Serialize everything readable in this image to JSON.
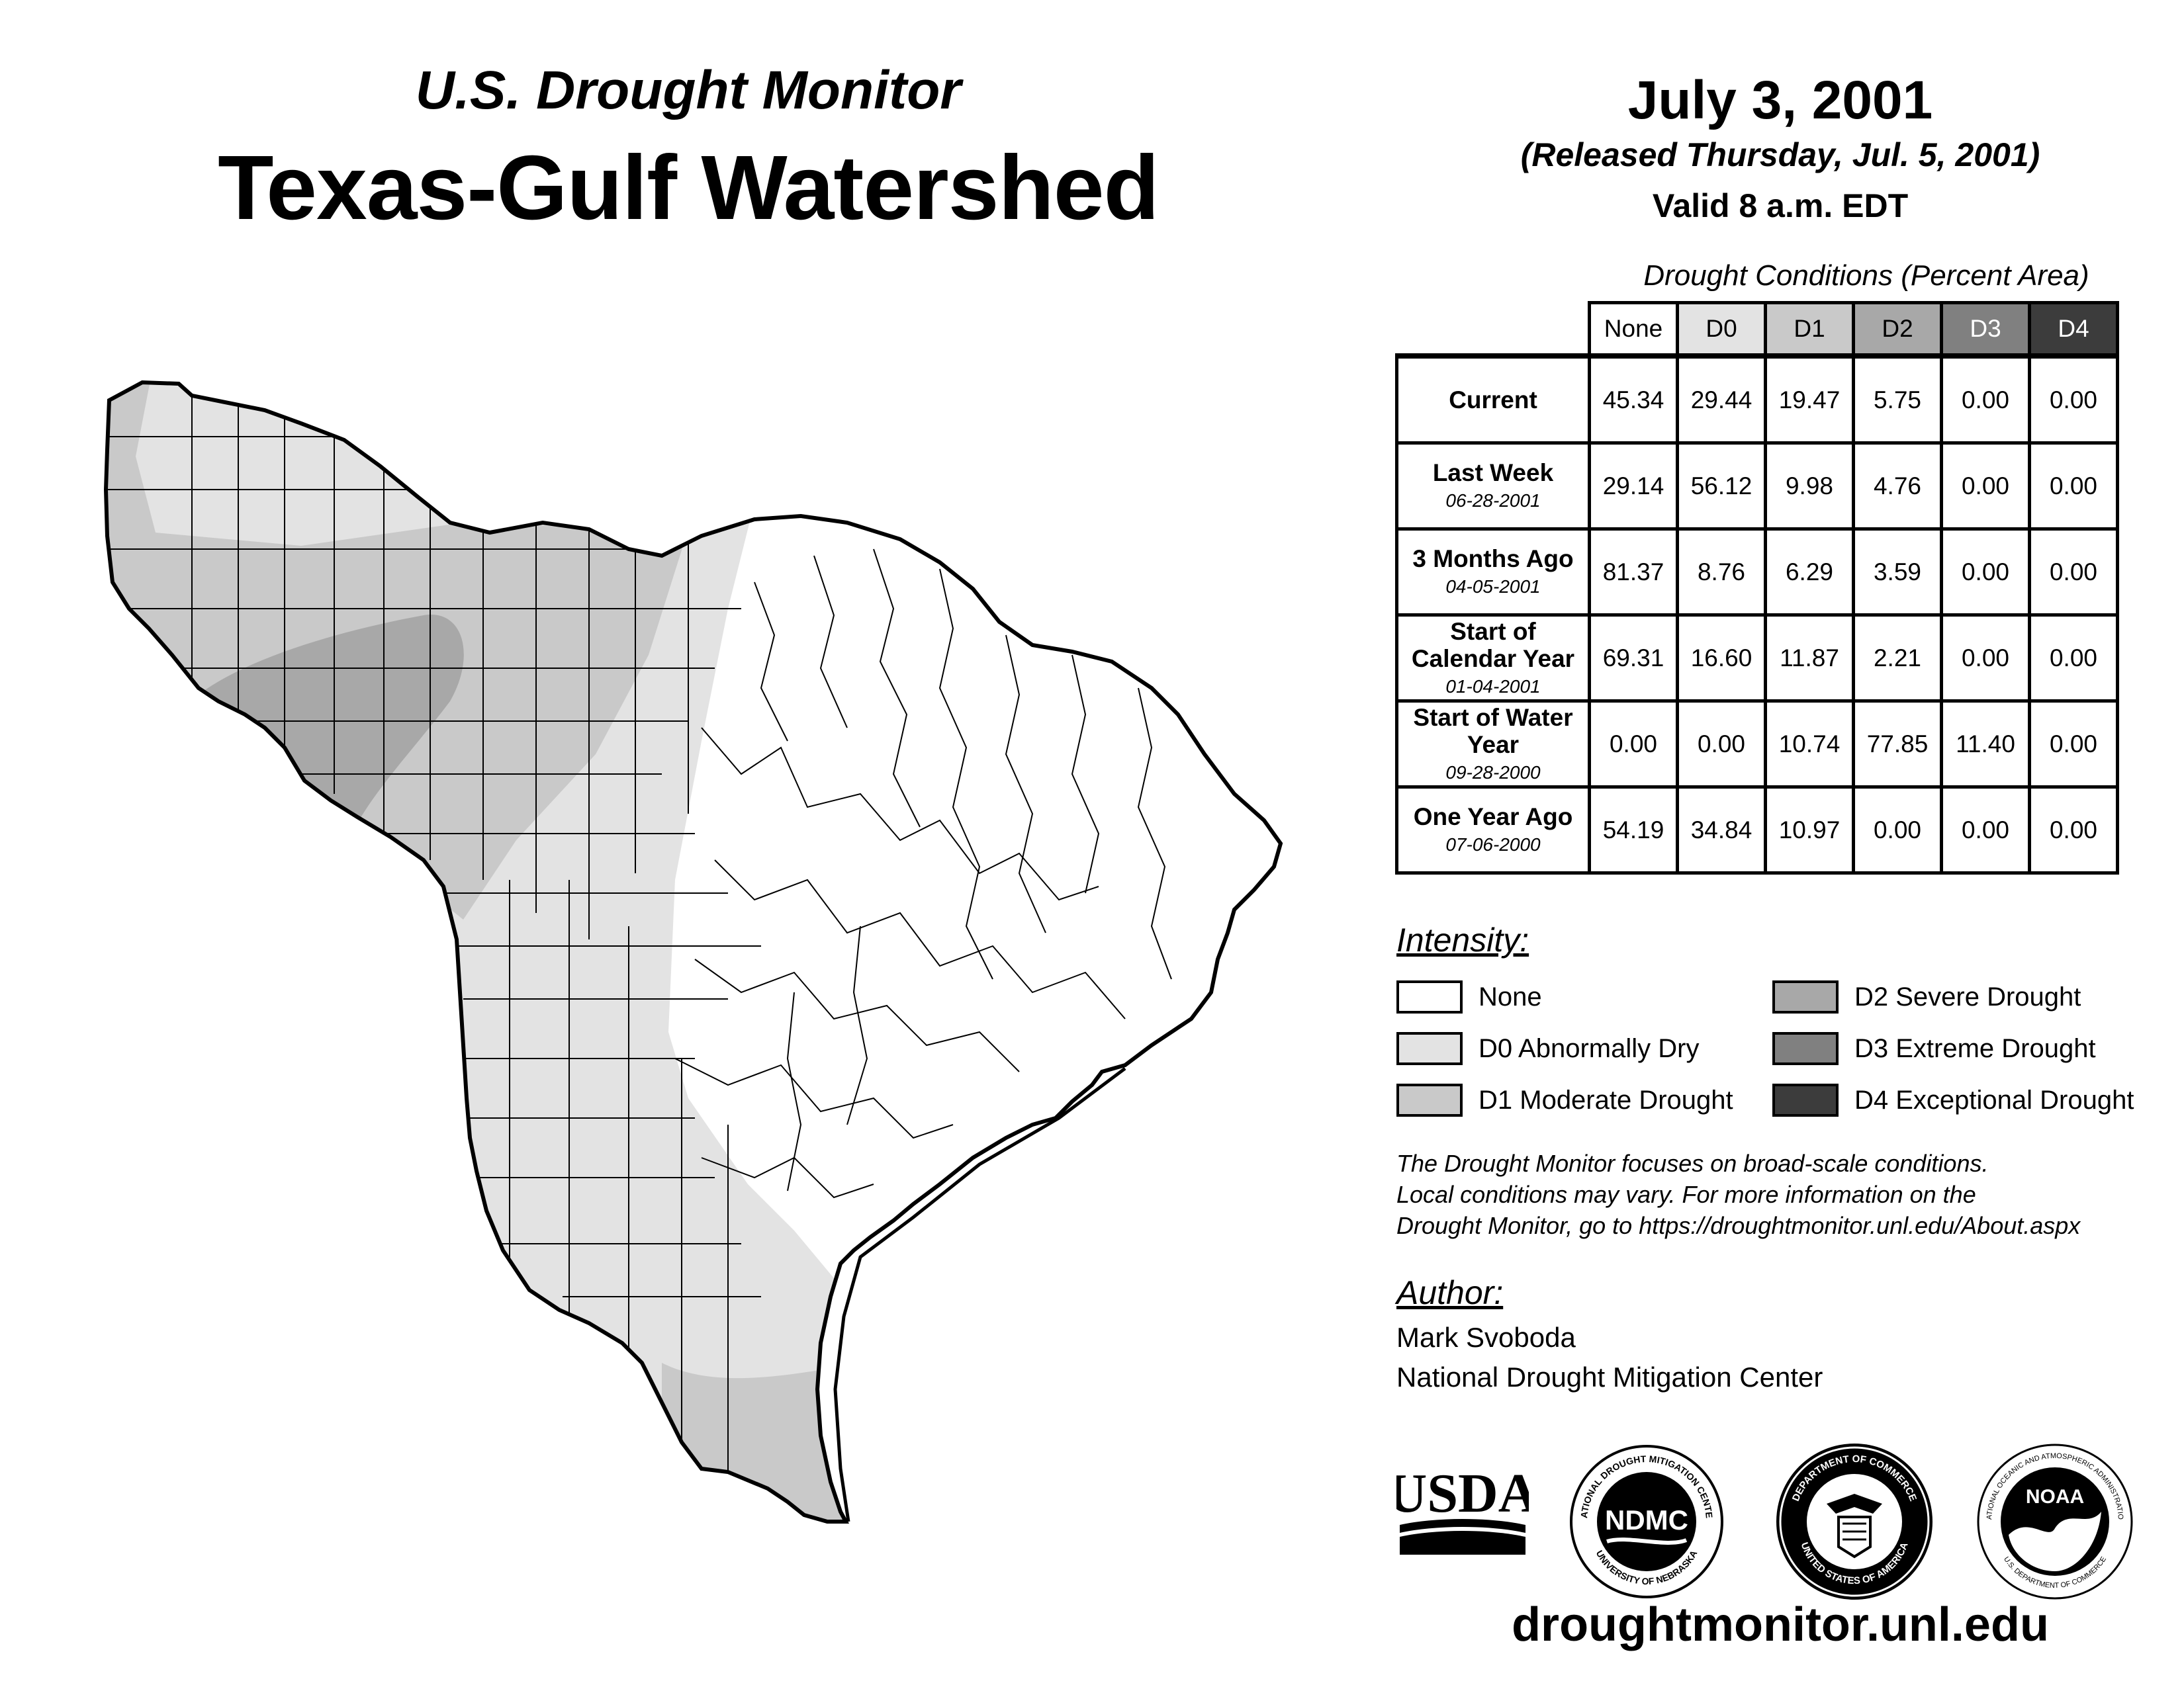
{
  "header": {
    "subtitle": "U.S. Drought Monitor",
    "title": "Texas-Gulf Watershed",
    "date": "July 3, 2001",
    "released": "(Released Thursday, Jul. 5, 2001)",
    "valid": "Valid 8 a.m. EDT"
  },
  "table": {
    "caption": "Drought Conditions (Percent Area)",
    "columns": [
      "None",
      "D0",
      "D1",
      "D2",
      "D3",
      "D4"
    ],
    "rows": [
      {
        "label": "Current",
        "date": "",
        "values": [
          "45.34",
          "29.44",
          "19.47",
          "5.75",
          "0.00",
          "0.00"
        ]
      },
      {
        "label": "Last Week",
        "date": "06-28-2001",
        "values": [
          "29.14",
          "56.12",
          "9.98",
          "4.76",
          "0.00",
          "0.00"
        ]
      },
      {
        "label": "3 Months Ago",
        "date": "04-05-2001",
        "values": [
          "81.37",
          "8.76",
          "6.29",
          "3.59",
          "0.00",
          "0.00"
        ]
      },
      {
        "label": "Start of Calendar Year",
        "date": "01-04-2001",
        "values": [
          "69.31",
          "16.60",
          "11.87",
          "2.21",
          "0.00",
          "0.00"
        ]
      },
      {
        "label": "Start of Water Year",
        "date": "09-28-2000",
        "values": [
          "0.00",
          "0.00",
          "10.74",
          "77.85",
          "11.40",
          "0.00"
        ]
      },
      {
        "label": "One Year Ago",
        "date": "07-06-2000",
        "values": [
          "54.19",
          "34.84",
          "10.97",
          "0.00",
          "0.00",
          "0.00"
        ]
      }
    ]
  },
  "legend": {
    "heading": "Intensity:",
    "items": [
      {
        "label": "None",
        "color": "#ffffff"
      },
      {
        "label": "D0 Abnormally Dry",
        "color": "#e3e3e3"
      },
      {
        "label": "D1 Moderate Drought",
        "color": "#c9c9c9"
      },
      {
        "label": "D2 Severe Drought",
        "color": "#a8a8a8"
      },
      {
        "label": "D3 Extreme Drought",
        "color": "#808080"
      },
      {
        "label": "D4 Exceptional Drought",
        "color": "#3c3c3c"
      }
    ]
  },
  "note": {
    "line1": "The Drought Monitor focuses on broad-scale conditions.",
    "line2": "Local conditions may vary. For more information on the",
    "line3": "Drought Monitor, go to https://droughtmonitor.unl.edu/About.aspx"
  },
  "author": {
    "heading": "Author:",
    "name": "Mark Svoboda",
    "org": "National Drought Mitigation Center"
  },
  "logos": {
    "usda": "USDA",
    "ndmc": "NDMC",
    "ndmc_ring_top": "NATIONAL DROUGHT MITIGATION CENTER",
    "ndmc_ring_bottom": "UNIVERSITY OF NEBRASKA",
    "doc_ring_top": "DEPARTMENT OF COMMERCE",
    "doc_ring_bottom": "UNITED STATES OF AMERICA",
    "noaa": "NOAA",
    "noaa_ring_top": "NATIONAL OCEANIC AND ATMOSPHERIC ADMINISTRATION",
    "noaa_ring_bottom": "U.S. DEPARTMENT OF COMMERCE"
  },
  "footer": {
    "website": "droughtmonitor.unl.edu"
  }
}
